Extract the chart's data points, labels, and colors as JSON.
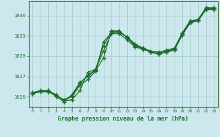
{
  "title": "Graphe pression niveau de la mer (hPa)",
  "background_color": "#cce8ee",
  "grid_color": "#aacccc",
  "line_color": "#1a6b2a",
  "xlim": [
    -0.5,
    23.5
  ],
  "ylim": [
    1025.5,
    1030.7
  ],
  "yticks": [
    1026,
    1027,
    1028,
    1029,
    1030
  ],
  "xticks": [
    0,
    1,
    2,
    3,
    4,
    5,
    6,
    7,
    8,
    9,
    10,
    11,
    12,
    13,
    14,
    15,
    16,
    17,
    18,
    19,
    20,
    21,
    22,
    23
  ],
  "series": [
    [
      1026.2,
      1026.3,
      1026.3,
      1026.1,
      1025.8,
      1025.85,
      1026.3,
      1027.2,
      1027.35,
      1028.5,
      1029.2,
      1029.2,
      1028.95,
      1028.6,
      1028.4,
      1028.2,
      1028.1,
      1028.2,
      1028.3,
      1029.1,
      1029.7,
      1029.8,
      1030.35,
      1030.35
    ],
    [
      1026.2,
      1026.3,
      1026.3,
      1026.0,
      1025.75,
      1026.1,
      1026.7,
      1027.0,
      1027.3,
      1027.9,
      1029.25,
      1029.25,
      1028.9,
      1028.5,
      1028.4,
      1028.25,
      1028.2,
      1028.3,
      1028.4,
      1029.15,
      1029.75,
      1029.8,
      1030.4,
      1030.4
    ],
    [
      1026.15,
      1026.25,
      1026.25,
      1026.05,
      1025.85,
      1026.0,
      1026.55,
      1026.85,
      1027.25,
      1028.7,
      1029.15,
      1029.15,
      1028.95,
      1028.55,
      1028.35,
      1028.2,
      1028.15,
      1028.25,
      1028.35,
      1029.05,
      1029.65,
      1029.75,
      1030.3,
      1030.3
    ],
    [
      1026.15,
      1026.25,
      1026.25,
      1026.05,
      1025.85,
      1026.05,
      1026.65,
      1027.05,
      1027.35,
      1028.25,
      1029.1,
      1029.1,
      1028.8,
      1028.45,
      1028.35,
      1028.2,
      1028.1,
      1028.2,
      1028.3,
      1029.05,
      1029.65,
      1029.75,
      1030.3,
      1030.3
    ]
  ]
}
